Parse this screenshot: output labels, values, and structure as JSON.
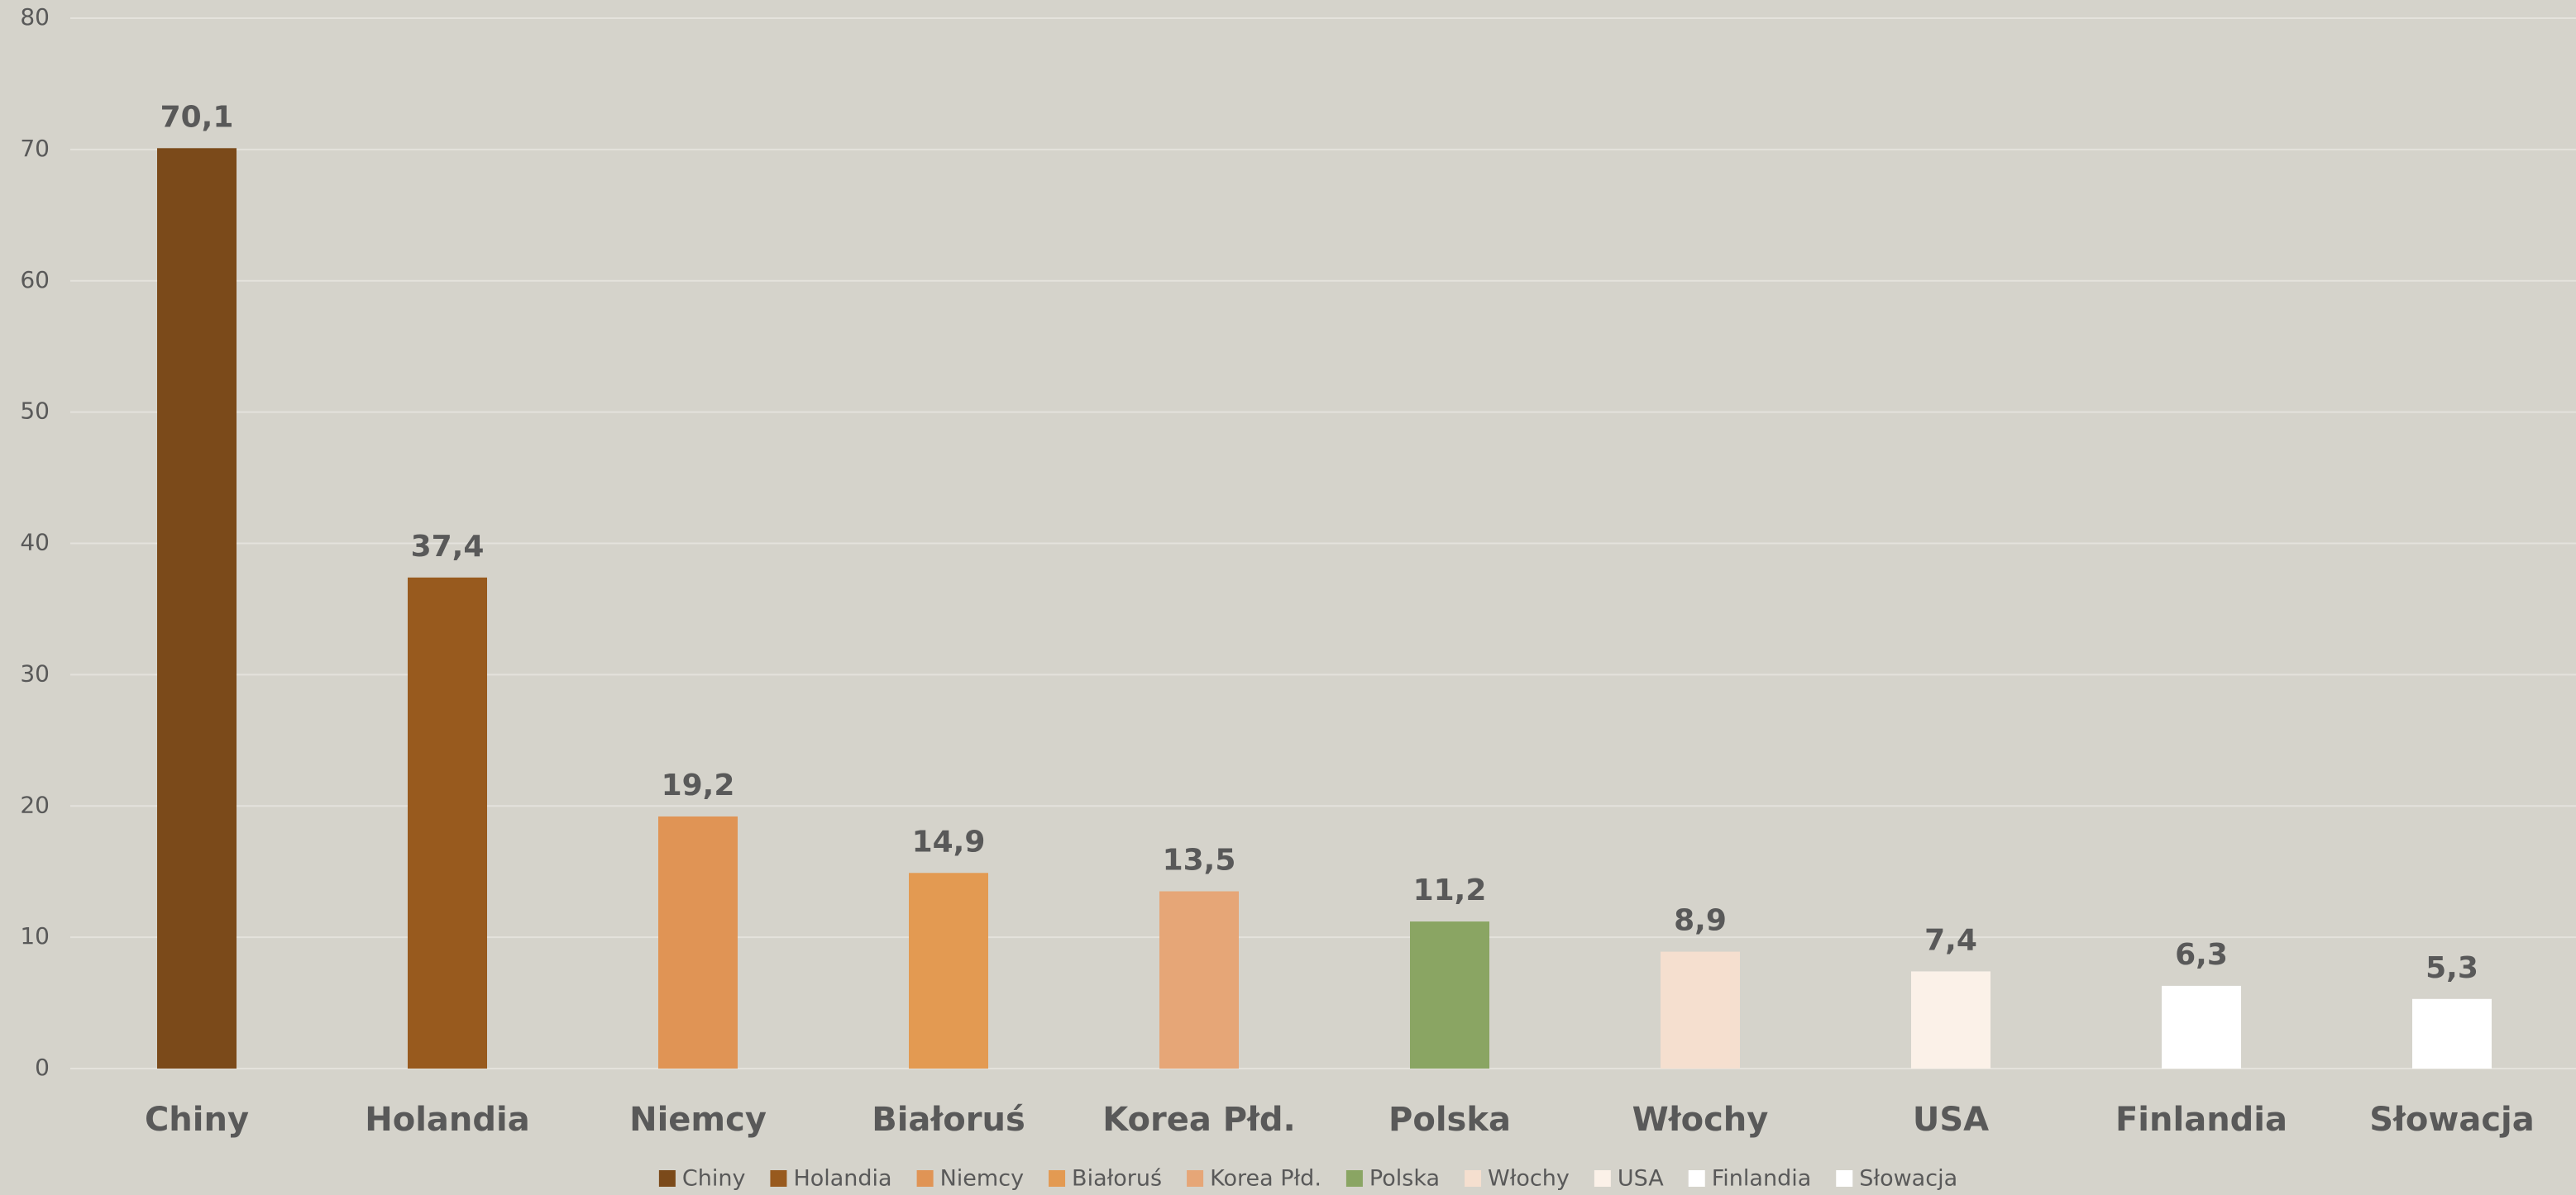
{
  "chart_data": {
    "type": "bar",
    "categories": [
      "Chiny",
      "Holandia",
      "Niemcy",
      "Białoruś",
      "Korea Płd.",
      "Polska",
      "Włochy",
      "USA",
      "Finlandia",
      "Słowacja"
    ],
    "values": [
      70.1,
      37.4,
      19.2,
      14.9,
      13.5,
      11.2,
      8.9,
      7.4,
      6.3,
      5.3
    ],
    "value_labels": [
      "70,1",
      "37,4",
      "19,2",
      "14,9",
      "13,5",
      "11,2",
      "8,9",
      "7,4",
      "6,3",
      "5,3"
    ],
    "colors": [
      "#7b4a1a",
      "#985a1e",
      "#e09455",
      "#e39a52",
      "#e6a677",
      "#8aa563",
      "#f5dfcf",
      "#fbf1e8",
      "#ffffff",
      "#ffffff"
    ],
    "ylim": [
      0,
      80
    ],
    "yticks": [
      0,
      10,
      20,
      30,
      40,
      50,
      60,
      70,
      80
    ],
    "grid": true,
    "legend": "bottom"
  }
}
